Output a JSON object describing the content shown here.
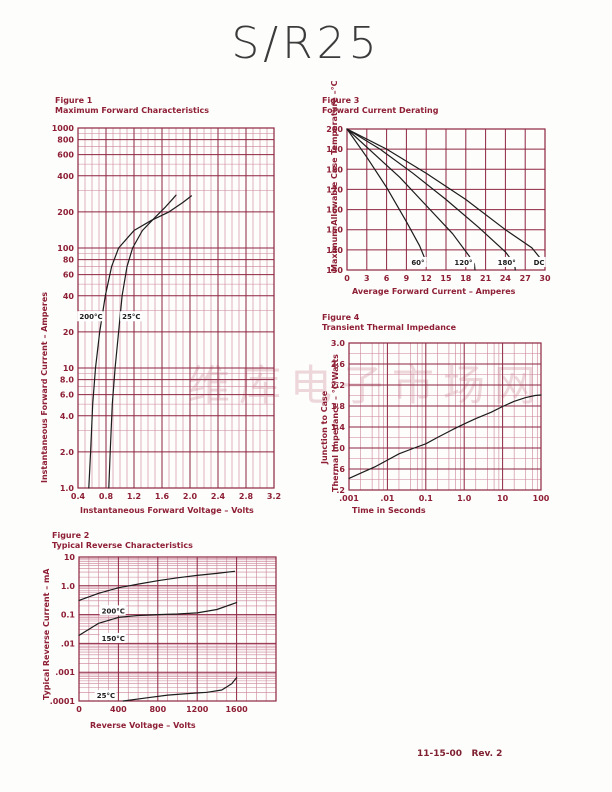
{
  "page": {
    "title": "S/R25",
    "footer": "11-15-00   Rev. 2",
    "watermark": "维库电子市场网"
  },
  "colors": {
    "grid_major": "#8e2540",
    "grid_minor": "#cb8298",
    "chart_text": "#8e1f35",
    "curve": "#1c1c1c",
    "annotation_text": "#1c1c1c",
    "background": "#fdfdfc",
    "title_text": "#3b3b3b"
  },
  "chart_data": [
    {
      "id": "fig1",
      "type": "line",
      "figure_label": "Figure 1",
      "title": "Maximum Forward Characteristics",
      "x_axis": {
        "label": "Instantaneous Forward Voltage – Volts",
        "scale": "linear",
        "min": 0.4,
        "max": 3.2,
        "minor_step": 0.1,
        "major_every": 4,
        "ticks": [
          {
            "v": 0.4,
            "label": "0.4"
          },
          {
            "v": 0.8,
            "label": "0.8"
          },
          {
            "v": 1.2,
            "label": "1.2"
          },
          {
            "v": 1.6,
            "label": "1.6"
          },
          {
            "v": 2.0,
            "label": "2.0"
          },
          {
            "v": 2.4,
            "label": "2.4"
          },
          {
            "v": 2.8,
            "label": "2.8"
          },
          {
            "v": 3.2,
            "label": "3.2"
          }
        ]
      },
      "y_axis": {
        "label": "Instantaneous Forward Current – Amperes",
        "scale": "log",
        "min": 1,
        "max": 1000,
        "major_mantissas": [
          1,
          2,
          4,
          6,
          8
        ],
        "minor_mantissas": [
          3,
          5,
          7,
          9
        ],
        "ticks": [
          {
            "v": 1000,
            "label": "1000"
          },
          {
            "v": 800,
            "label": "800"
          },
          {
            "v": 600,
            "label": "600"
          },
          {
            "v": 400,
            "label": "400"
          },
          {
            "v": 200,
            "label": "200"
          },
          {
            "v": 100,
            "label": "100"
          },
          {
            "v": 80,
            "label": "80"
          },
          {
            "v": 60,
            "label": "60"
          },
          {
            "v": 40,
            "label": "40"
          },
          {
            "v": 20,
            "label": "20"
          },
          {
            "v": 10,
            "label": "10"
          },
          {
            "v": 8,
            "label": "8.0"
          },
          {
            "v": 6,
            "label": "6.0"
          },
          {
            "v": 4,
            "label": "4.0"
          },
          {
            "v": 2,
            "label": "2.0"
          },
          {
            "v": 1,
            "label": "1.0"
          }
        ]
      },
      "series": [
        {
          "name": "200°C",
          "points": [
            [
              0.555,
              1
            ],
            [
              0.58,
              2
            ],
            [
              0.61,
              5
            ],
            [
              0.65,
              10
            ],
            [
              0.71,
              20
            ],
            [
              0.79,
              40
            ],
            [
              0.88,
              70
            ],
            [
              0.98,
              100
            ],
            [
              1.2,
              140
            ],
            [
              1.45,
              170
            ],
            [
              1.7,
              200
            ],
            [
              1.9,
              240
            ],
            [
              2.02,
              272
            ]
          ]
        },
        {
          "name": "25°C",
          "points": [
            [
              0.84,
              1
            ],
            [
              0.86,
              2
            ],
            [
              0.89,
              5
            ],
            [
              0.93,
              10
            ],
            [
              0.98,
              20
            ],
            [
              1.03,
              40
            ],
            [
              1.1,
              70
            ],
            [
              1.18,
              100
            ],
            [
              1.32,
              140
            ],
            [
              1.5,
              180
            ],
            [
              1.65,
              220
            ],
            [
              1.75,
              255
            ],
            [
              1.8,
              276
            ]
          ]
        }
      ],
      "annotations": [
        {
          "text": "200°C",
          "x": 0.42,
          "y": 27,
          "anchor": "start"
        },
        {
          "text": "25°C",
          "x": 1.03,
          "y": 27,
          "anchor": "start"
        }
      ]
    },
    {
      "id": "fig2",
      "type": "line",
      "figure_label": "Figure 2",
      "title": "Typical Reverse Characteristics",
      "x_axis": {
        "label": "Reverse Voltage – Volts",
        "scale": "linear",
        "min": 0,
        "max": 2000,
        "minor_step": 100,
        "major_every": 4,
        "ticks": [
          {
            "v": 0,
            "label": "0"
          },
          {
            "v": 400,
            "label": "400"
          },
          {
            "v": 800,
            "label": "800"
          },
          {
            "v": 1200,
            "label": "1200"
          },
          {
            "v": 1600,
            "label": "1600"
          }
        ]
      },
      "y_axis": {
        "label": "Typical Reverse Current – mA",
        "scale": "log",
        "min": 0.0001,
        "max": 10,
        "major_mantissas": [
          1
        ],
        "minor_mantissas": [
          2,
          3,
          4,
          5,
          6,
          7,
          8,
          9
        ],
        "ticks": [
          {
            "v": 10,
            "label": "10"
          },
          {
            "v": 1,
            "label": "1.0"
          },
          {
            "v": 0.1,
            "label": "0.1"
          },
          {
            "v": 0.01,
            "label": ".01"
          },
          {
            "v": 0.001,
            "label": ".001"
          },
          {
            "v": 0.0001,
            "label": ".0001"
          }
        ]
      },
      "series": [
        {
          "name": "200°C",
          "points": [
            [
              0,
              0.31
            ],
            [
              200,
              0.55
            ],
            [
              400,
              0.85
            ],
            [
              600,
              1.15
            ],
            [
              800,
              1.5
            ],
            [
              1000,
              1.9
            ],
            [
              1200,
              2.3
            ],
            [
              1400,
              2.7
            ],
            [
              1580,
              3.2
            ]
          ]
        },
        {
          "name": "150°C",
          "points": [
            [
              0,
              0.019
            ],
            [
              200,
              0.05
            ],
            [
              400,
              0.08
            ],
            [
              600,
              0.093
            ],
            [
              800,
              0.1
            ],
            [
              1000,
              0.105
            ],
            [
              1200,
              0.115
            ],
            [
              1400,
              0.15
            ],
            [
              1600,
              0.26
            ]
          ]
        },
        {
          "name": "25°C",
          "points": [
            [
              450,
              0.0001
            ],
            [
              700,
              0.00013
            ],
            [
              900,
              0.00016
            ],
            [
              1100,
              0.00018
            ],
            [
              1300,
              0.0002
            ],
            [
              1450,
              0.00024
            ],
            [
              1550,
              0.0004
            ],
            [
              1600,
              0.00065
            ]
          ]
        }
      ],
      "annotations": [
        {
          "text": "200°C",
          "x": 230,
          "y": 0.14,
          "anchor": "start"
        },
        {
          "text": "150°C",
          "x": 230,
          "y": 0.0155,
          "anchor": "start"
        },
        {
          "text": "25°C",
          "x": 180,
          "y": 0.00016,
          "anchor": "start"
        }
      ]
    },
    {
      "id": "fig3",
      "type": "line",
      "figure_label": "Figure 3",
      "title": "Forward Current Derating",
      "x_axis": {
        "label": "Average Forward Current – Amperes",
        "scale": "linear",
        "min": 0,
        "max": 30,
        "minor_step": 3,
        "major_every": 1,
        "ticks": [
          {
            "v": 0,
            "label": "0"
          },
          {
            "v": 3,
            "label": "3"
          },
          {
            "v": 6,
            "label": "6"
          },
          {
            "v": 9,
            "label": "9"
          },
          {
            "v": 12,
            "label": "12"
          },
          {
            "v": 15,
            "label": "15"
          },
          {
            "v": 18,
            "label": "18"
          },
          {
            "v": 21,
            "label": "21"
          },
          {
            "v": 24,
            "label": "24"
          },
          {
            "v": 27,
            "label": "27"
          },
          {
            "v": 30,
            "label": "30"
          }
        ]
      },
      "y_axis": {
        "label": "Maximum Allowable Case Temperature –°C",
        "scale": "linear",
        "min": 130,
        "max": 200,
        "minor_step": 10,
        "major_every": 1,
        "ticks": [
          {
            "v": 200,
            "label": "200"
          },
          {
            "v": 190,
            "label": "190"
          },
          {
            "v": 180,
            "label": "180"
          },
          {
            "v": 170,
            "label": "170"
          },
          {
            "v": 160,
            "label": "160"
          },
          {
            "v": 150,
            "label": "150"
          },
          {
            "v": 140,
            "label": "140"
          },
          {
            "v": 130,
            "label": "130"
          }
        ]
      },
      "series": [
        {
          "name": "60°",
          "points": [
            [
              0,
              200
            ],
            [
              3,
              186
            ],
            [
              6,
              171
            ],
            [
              9,
              154
            ],
            [
              11,
              142
            ],
            [
              12,
              134
            ]
          ]
        },
        {
          "name": "120°",
          "points": [
            [
              0,
              200
            ],
            [
              4,
              188
            ],
            [
              8,
              176
            ],
            [
              12,
              162
            ],
            [
              16,
              148
            ],
            [
              18.5,
              137
            ],
            [
              19.3,
              133
            ],
            [
              19.4,
              130
            ]
          ]
        },
        {
          "name": "180°",
          "points": [
            [
              0,
              200
            ],
            [
              5,
              190
            ],
            [
              10,
              178
            ],
            [
              15,
              165
            ],
            [
              20,
              151
            ],
            [
              24,
              139
            ],
            [
              25.4,
              133
            ],
            [
              25.5,
              130
            ]
          ]
        },
        {
          "name": "DC",
          "points": [
            [
              0,
              200
            ],
            [
              6,
              190
            ],
            [
              12,
              178
            ],
            [
              18,
              165
            ],
            [
              24,
              150
            ],
            [
              28,
              141
            ],
            [
              30,
              133
            ]
          ]
        }
      ],
      "annotations": [
        {
          "text": "60°",
          "x": 10.75,
          "y": 134,
          "anchor": "middle"
        },
        {
          "text": "120°",
          "x": 17.65,
          "y": 134,
          "anchor": "middle"
        },
        {
          "text": "180°",
          "x": 24.2,
          "y": 134,
          "anchor": "middle"
        },
        {
          "text": "DC",
          "x": 29.1,
          "y": 134,
          "anchor": "middle"
        }
      ]
    },
    {
      "id": "fig4",
      "type": "line",
      "figure_label": "Figure 4",
      "title": "Transient Thermal Impedance",
      "x_axis": {
        "label": "Time in Seconds",
        "scale": "log",
        "min": 0.001,
        "max": 100,
        "major_mantissas": [
          1
        ],
        "minor_mantissas": [
          2,
          4,
          6,
          8
        ],
        "ticks": [
          {
            "v": 0.001,
            "label": ".001"
          },
          {
            "v": 0.01,
            "label": ".01"
          },
          {
            "v": 0.1,
            "label": "0.1"
          },
          {
            "v": 1,
            "label": "1.0"
          },
          {
            "v": 10,
            "label": "10"
          },
          {
            "v": 100,
            "label": "100"
          }
        ]
      },
      "y_axis": {
        "label_line1": "Junction to Case",
        "label_line2": "Thermal Impedance – °C/Watts",
        "scale": "linear",
        "min": 0.2,
        "max": 3.0,
        "minor_step": 0.2,
        "major_every": 2,
        "ticks": [
          {
            "v": 3.0,
            "label": "3.0"
          },
          {
            "v": 2.6,
            "label": "2.6"
          },
          {
            "v": 2.2,
            "label": "2.2"
          },
          {
            "v": 1.8,
            "label": "1.8"
          },
          {
            "v": 1.4,
            "label": "1.4"
          },
          {
            "v": 1.0,
            "label": "1.0"
          },
          {
            "v": 0.6,
            "label": ".6"
          },
          {
            "v": 0.2,
            "label": ".2"
          }
        ]
      },
      "series": [
        {
          "name": "thermal-impedance",
          "points": [
            [
              0.001,
              0.42
            ],
            [
              0.002,
              0.52
            ],
            [
              0.005,
              0.65
            ],
            [
              0.01,
              0.77
            ],
            [
              0.02,
              0.89
            ],
            [
              0.05,
              1.0
            ],
            [
              0.1,
              1.08
            ],
            [
              0.2,
              1.2
            ],
            [
              0.5,
              1.35
            ],
            [
              1,
              1.46
            ],
            [
              2,
              1.56
            ],
            [
              5,
              1.68
            ],
            [
              10,
              1.79
            ],
            [
              20,
              1.89
            ],
            [
              40,
              1.96
            ],
            [
              70,
              2.0
            ],
            [
              100,
              2.01
            ]
          ]
        }
      ],
      "annotations": []
    }
  ]
}
